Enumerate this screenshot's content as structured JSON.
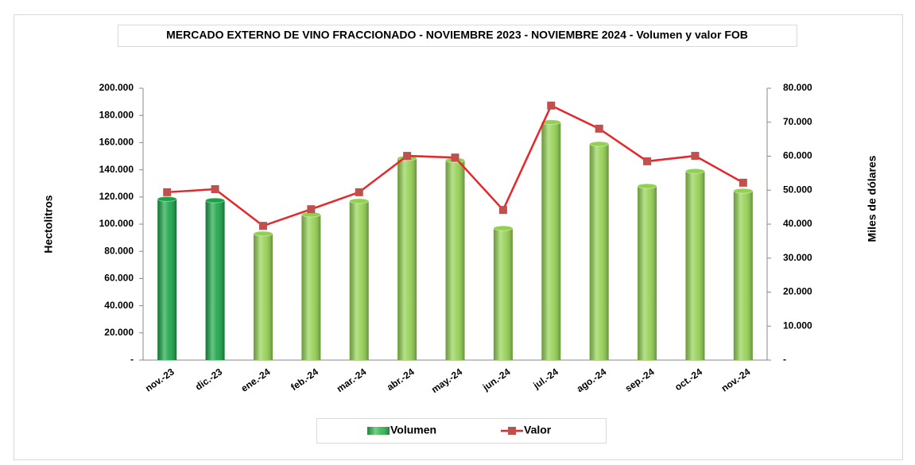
{
  "chart_data": {
    "type": "bar",
    "title": "MERCADO EXTERNO DE VINO FRACCIONADO - NOVIEMBRE 2023 - NOVIEMBRE 2024 - Volumen y valor FOB",
    "ylabel": "Hectolitros",
    "y2label": "Miles de dólares",
    "categories": [
      "nov.-23",
      "dic.-23",
      "ene.-24",
      "feb.-24",
      "mar.-24",
      "abr.-24",
      "may.-24",
      "jun.-24",
      "jul.-24",
      "ago.-24",
      "sep.-24",
      "oct.-24",
      "nov.-24"
    ],
    "series": [
      {
        "name": "Volumen",
        "type": "bar",
        "color": "#33b350",
        "colors": [
          "#17a345",
          "#17a345",
          "#92d050",
          "#92d050",
          "#92d050",
          "#92d050",
          "#92d050",
          "#92d050",
          "#92d050",
          "#92d050",
          "#92d050",
          "#92d050",
          "#92d050"
        ],
        "values": [
          118500,
          117500,
          93000,
          107000,
          117000,
          148500,
          147000,
          97000,
          175000,
          159000,
          128000,
          139000,
          124500
        ]
      },
      {
        "name": "Valor",
        "type": "line",
        "axis": "y2",
        "color": "#e8262a",
        "marker_color": "#c0504d",
        "values": [
          49400,
          50300,
          39500,
          44400,
          49400,
          60100,
          59600,
          44200,
          74900,
          68100,
          58500,
          60100,
          52200
        ]
      }
    ],
    "ylim": [
      0,
      200000
    ],
    "yticks": [
      {
        "value": 0,
        "label": "-"
      },
      {
        "value": 20000,
        "label": "20.000"
      },
      {
        "value": 40000,
        "label": "40.000"
      },
      {
        "value": 60000,
        "label": "60.000"
      },
      {
        "value": 80000,
        "label": "80.000"
      },
      {
        "value": 100000,
        "label": "100.000"
      },
      {
        "value": 120000,
        "label": "120.000"
      },
      {
        "value": 140000,
        "label": "140.000"
      },
      {
        "value": 160000,
        "label": "160.000"
      },
      {
        "value": 180000,
        "label": "180.000"
      },
      {
        "value": 200000,
        "label": "200.000"
      }
    ],
    "y2lim": [
      0,
      80000
    ],
    "y2ticks": [
      {
        "value": 0,
        "label": "-"
      },
      {
        "value": 10000,
        "label": "10.000"
      },
      {
        "value": 20000,
        "label": "20.000"
      },
      {
        "value": 30000,
        "label": "30.000"
      },
      {
        "value": 40000,
        "label": "40.000"
      },
      {
        "value": 50000,
        "label": "50.000"
      },
      {
        "value": 60000,
        "label": "60.000"
      },
      {
        "value": 70000,
        "label": "70.000"
      },
      {
        "value": 80000,
        "label": "80.000"
      }
    ],
    "grid": false,
    "legend": "bottom"
  }
}
